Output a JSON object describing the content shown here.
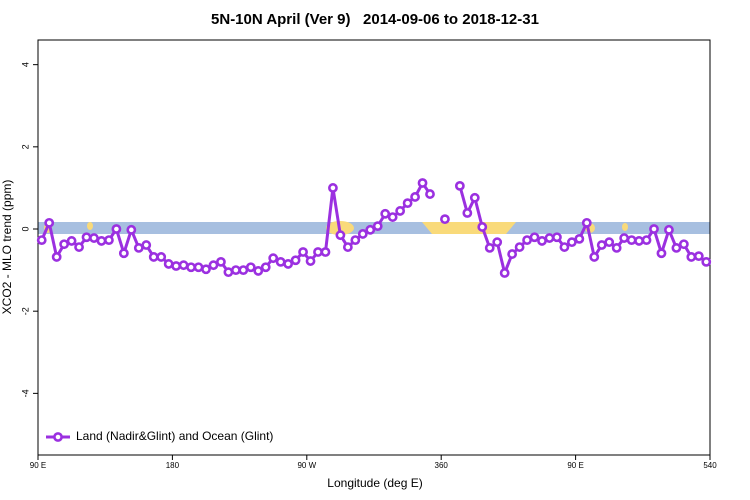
{
  "chart_data": {
    "type": "line",
    "title": "5N-10N April (Ver 9)   2014-09-06 to 2018-12-31",
    "xlabel": "Longitude (deg E)",
    "ylabel": "XCO2 - MLO trend (ppm)",
    "x": [
      92.5,
      97.5,
      102.5,
      107.5,
      112.5,
      117.5,
      122.5,
      127.5,
      132.5,
      137.5,
      142.5,
      147.5,
      152.5,
      157.5,
      162.5,
      167.5,
      172.5,
      177.5,
      182.5,
      187.5,
      192.5,
      197.5,
      202.5,
      207.5,
      212.5,
      217.5,
      222.5,
      227.5,
      232.5,
      237.5,
      242.5,
      247.5,
      252.5,
      257.5,
      262.5,
      267.5,
      272.5,
      277.5,
      282.5,
      287.5,
      292.5,
      297.5,
      302.5,
      307.5,
      312.5,
      317.5,
      322.5,
      327.5,
      332.5,
      337.5,
      342.5,
      347.5,
      352.5,
      357.5,
      362.5,
      367.5,
      372.5,
      377.5,
      382.5,
      387.5,
      392.5,
      397.5,
      402.5,
      407.5,
      412.5,
      417.5,
      422.5,
      427.5,
      432.5,
      437.5,
      442.5,
      447.5,
      452.5,
      457.5,
      462.5,
      467.5,
      472.5,
      477.5,
      482.5,
      487.5,
      492.5,
      497.5,
      502.5,
      507.5,
      512.5,
      517.5,
      522.5,
      527.5,
      532.5,
      537.5
    ],
    "series": [
      {
        "name": "Land (Nadir&Glint) and Ocean (Glint)",
        "color": "#9b30e0",
        "values": [
          -0.27,
          0.15,
          -0.68,
          -0.37,
          -0.29,
          -0.44,
          -0.2,
          -0.22,
          -0.29,
          -0.27,
          0.0,
          -0.59,
          -0.02,
          -0.46,
          -0.39,
          -0.68,
          -0.68,
          -0.85,
          -0.9,
          -0.88,
          -0.93,
          -0.93,
          -0.98,
          -0.88,
          -0.8,
          -1.05,
          -1.0,
          -1.0,
          -0.93,
          -1.02,
          -0.93,
          -0.71,
          -0.8,
          -0.85,
          -0.76,
          -0.56,
          -0.78,
          -0.56,
          -0.56,
          1.0,
          -0.15,
          -0.44,
          -0.27,
          -0.12,
          -0.02,
          0.07,
          0.37,
          0.29,
          0.44,
          0.63,
          0.78,
          1.12,
          0.85,
          null,
          0.24,
          null,
          1.05,
          0.39,
          0.76,
          0.05,
          -0.46,
          -0.32,
          -1.07,
          -0.61,
          -0.44,
          -0.27,
          -0.2,
          -0.29,
          -0.22,
          -0.2,
          -0.44,
          -0.32,
          -0.24,
          0.15,
          -0.68,
          -0.39,
          -0.32,
          -0.46,
          -0.22,
          -0.27,
          -0.29,
          -0.27,
          0.0,
          -0.59,
          -0.02,
          -0.46,
          -0.37,
          -0.68,
          -0.66,
          -0.8
        ]
      }
    ],
    "xlim": [
      90,
      540
    ],
    "xticks": [
      {
        "value": 90,
        "label": "90 E"
      },
      180,
      {
        "value": 270,
        "label": "90 W"
      },
      360,
      {
        "value": 450,
        "label": "90 E"
      },
      540
    ],
    "ylim": [
      -5.5,
      4.6
    ],
    "yticks": [
      -4,
      -2,
      0,
      2,
      4
    ],
    "legend": "bottom-left"
  }
}
